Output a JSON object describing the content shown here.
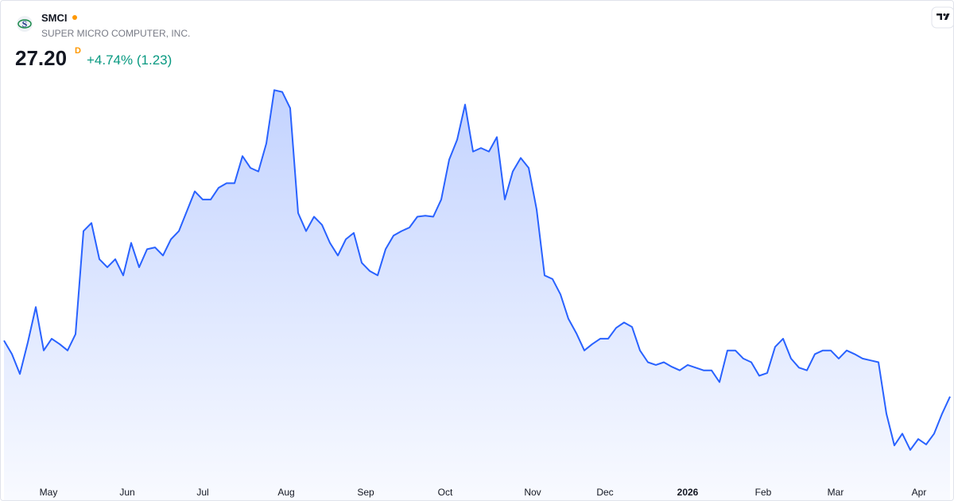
{
  "chart_data": {
    "type": "area",
    "title": "SMCI",
    "subtitle": "SUPER MICRO COMPUTER, INC.",
    "price": "27.20",
    "interval": "D",
    "change": "+4.74% (1.23)",
    "color": "#2962ff",
    "values": [
      33.4,
      31.9,
      29.7,
      33.2,
      37.1,
      32.3,
      33.6,
      33.0,
      32.3,
      34.1,
      45.5,
      46.4,
      42.4,
      41.5,
      42.4,
      40.6,
      44.2,
      41.5,
      43.5,
      43.7,
      42.8,
      44.6,
      45.5,
      47.7,
      49.9,
      49.0,
      49.0,
      50.3,
      50.8,
      50.8,
      53.8,
      52.5,
      52.1,
      55.2,
      61.1,
      60.9,
      59.1,
      47.5,
      45.5,
      47.1,
      46.2,
      44.2,
      42.8,
      44.6,
      45.3,
      42.0,
      41.1,
      40.6,
      43.5,
      45.0,
      45.5,
      45.9,
      47.1,
      47.2,
      47.1,
      49.0,
      53.4,
      55.6,
      59.5,
      54.3,
      54.7,
      54.3,
      55.9,
      49.0,
      52.1,
      53.6,
      52.5,
      47.9,
      40.6,
      40.2,
      38.5,
      35.8,
      34.2,
      32.3,
      33.0,
      33.6,
      33.6,
      34.8,
      35.4,
      34.9,
      32.3,
      31.0,
      30.7,
      31.0,
      30.5,
      30.1,
      30.7,
      30.4,
      30.1,
      30.1,
      28.8,
      32.3,
      32.3,
      31.4,
      31.0,
      29.5,
      29.8,
      32.7,
      33.6,
      31.4,
      30.4,
      30.1,
      31.9,
      32.3,
      32.3,
      31.4,
      32.3,
      31.9,
      31.4,
      31.2,
      31.0,
      25.3,
      21.8,
      23.1,
      21.3,
      22.5,
      21.9,
      23.1,
      25.3,
      27.2
    ],
    "xlim": [
      -0.4,
      119.6
    ],
    "ylim": [
      18.2,
      65.7
    ],
    "xticks": [
      {
        "value": 5.6,
        "label": "May"
      },
      {
        "value": 15.5,
        "label": "Jun"
      },
      {
        "value": 25,
        "label": "Jul"
      },
      {
        "value": 35.5,
        "label": "Aug"
      },
      {
        "value": 45.5,
        "label": "Sep"
      },
      {
        "value": 55.5,
        "label": "Oct"
      },
      {
        "value": 66.5,
        "label": "Nov"
      },
      {
        "value": 75.6,
        "label": "Dec"
      },
      {
        "value": 86,
        "label": "2026"
      },
      {
        "value": 95.5,
        "label": "Feb"
      },
      {
        "value": 104.6,
        "label": "Mar"
      },
      {
        "value": 115.1,
        "label": "Apr"
      }
    ]
  }
}
